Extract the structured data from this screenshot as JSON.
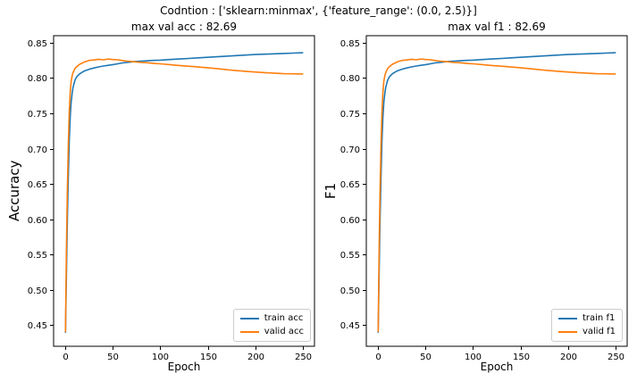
{
  "figure": {
    "suptitle": "Codntion : ['sklearn:minmax', {'feature_range': (0.0, 2.5)}]"
  },
  "colors": {
    "train_line": "#1f77b4",
    "valid_line": "#ff7f0e",
    "spine": "#000000",
    "legend_border": "#cccccc",
    "background": "#ffffff"
  },
  "chart_data": [
    {
      "type": "line",
      "title": "max val acc : 82.69",
      "xlabel": "Epoch",
      "ylabel": "Accuracy",
      "legend_position": "lower right",
      "grid": false,
      "axis": {
        "xlim": [
          -12.5,
          262.5
        ],
        "ylim": [
          0.42,
          0.86
        ],
        "xticks": [
          0,
          50,
          100,
          150,
          200,
          250
        ],
        "xtick_labels": [
          "0",
          "50",
          "100",
          "150",
          "200",
          "250"
        ],
        "yticks": [
          0.45,
          0.5,
          0.55,
          0.6,
          0.65,
          0.7,
          0.75,
          0.8,
          0.85
        ],
        "ytick_labels": [
          "0.45",
          "0.50",
          "0.55",
          "0.60",
          "0.65",
          "0.70",
          "0.75",
          "0.80",
          "0.85"
        ]
      },
      "x": [
        0,
        1,
        2,
        3,
        4,
        5,
        6,
        7,
        8,
        10,
        12,
        15,
        18,
        20,
        25,
        30,
        35,
        40,
        45,
        50,
        55,
        60,
        65,
        70,
        75,
        80,
        85,
        90,
        95,
        100,
        110,
        120,
        130,
        140,
        150,
        160,
        170,
        180,
        190,
        200,
        210,
        220,
        230,
        240,
        250
      ],
      "series": [
        {
          "name": "train acc",
          "color": "#1f77b4",
          "values": [
            0.44,
            0.52,
            0.6,
            0.662,
            0.71,
            0.745,
            0.765,
            0.778,
            0.787,
            0.797,
            0.802,
            0.806,
            0.8085,
            0.81,
            0.8125,
            0.8142,
            0.8158,
            0.817,
            0.818,
            0.819,
            0.8202,
            0.8214,
            0.8222,
            0.823,
            0.8236,
            0.824,
            0.8244,
            0.8248,
            0.8251,
            0.8254,
            0.8262,
            0.827,
            0.8278,
            0.8286,
            0.8294,
            0.8302,
            0.831,
            0.8318,
            0.8326,
            0.8333,
            0.8338,
            0.8343,
            0.8348,
            0.8353,
            0.8358
          ]
        },
        {
          "name": "valid acc",
          "color": "#ff7f0e",
          "values": [
            0.441,
            0.552,
            0.641,
            0.706,
            0.751,
            0.78,
            0.795,
            0.803,
            0.808,
            0.8135,
            0.8163,
            0.8196,
            0.8214,
            0.8228,
            0.825,
            0.8256,
            0.8266,
            0.8258,
            0.8269,
            0.8262,
            0.8258,
            0.8248,
            0.824,
            0.8234,
            0.8228,
            0.8222,
            0.8218,
            0.8212,
            0.8206,
            0.8202,
            0.819,
            0.8178,
            0.8168,
            0.8156,
            0.8146,
            0.8133,
            0.8118,
            0.8105,
            0.8095,
            0.8086,
            0.8076,
            0.807,
            0.8061,
            0.806,
            0.8057
          ]
        }
      ]
    },
    {
      "type": "line",
      "title": "max val f1 : 82.69",
      "xlabel": "Epoch",
      "ylabel": "F1",
      "legend_position": "lower right",
      "grid": false,
      "axis": {
        "xlim": [
          -12.5,
          262.5
        ],
        "ylim": [
          0.42,
          0.86
        ],
        "xticks": [
          0,
          50,
          100,
          150,
          200,
          250
        ],
        "xtick_labels": [
          "0",
          "50",
          "100",
          "150",
          "200",
          "250"
        ],
        "yticks": [
          0.45,
          0.5,
          0.55,
          0.6,
          0.65,
          0.7,
          0.75,
          0.8,
          0.85
        ],
        "ytick_labels": [
          "0.45",
          "0.50",
          "0.55",
          "0.60",
          "0.65",
          "0.70",
          "0.75",
          "0.80",
          "0.85"
        ]
      },
      "x": [
        0,
        1,
        2,
        3,
        4,
        5,
        6,
        7,
        8,
        10,
        12,
        15,
        18,
        20,
        25,
        30,
        35,
        40,
        45,
        50,
        55,
        60,
        65,
        70,
        75,
        80,
        85,
        90,
        95,
        100,
        110,
        120,
        130,
        140,
        150,
        160,
        170,
        180,
        190,
        200,
        210,
        220,
        230,
        240,
        250
      ],
      "series": [
        {
          "name": "train f1",
          "color": "#1f77b4",
          "values": [
            0.44,
            0.52,
            0.6,
            0.662,
            0.71,
            0.745,
            0.765,
            0.778,
            0.787,
            0.797,
            0.802,
            0.806,
            0.8085,
            0.81,
            0.8125,
            0.8142,
            0.8158,
            0.817,
            0.818,
            0.819,
            0.8202,
            0.8214,
            0.8222,
            0.823,
            0.8236,
            0.824,
            0.8244,
            0.8248,
            0.8251,
            0.8254,
            0.8262,
            0.827,
            0.8278,
            0.8286,
            0.8294,
            0.8302,
            0.831,
            0.8318,
            0.8326,
            0.8333,
            0.8338,
            0.8343,
            0.8348,
            0.8353,
            0.8358
          ]
        },
        {
          "name": "valid f1",
          "color": "#ff7f0e",
          "values": [
            0.441,
            0.552,
            0.641,
            0.706,
            0.751,
            0.78,
            0.795,
            0.803,
            0.808,
            0.8135,
            0.8163,
            0.8196,
            0.8214,
            0.8228,
            0.825,
            0.8256,
            0.8266,
            0.8258,
            0.8269,
            0.8262,
            0.8258,
            0.8248,
            0.824,
            0.8234,
            0.8228,
            0.8222,
            0.8218,
            0.8212,
            0.8206,
            0.8202,
            0.819,
            0.8178,
            0.8168,
            0.8156,
            0.8146,
            0.8133,
            0.8118,
            0.8105,
            0.8095,
            0.8086,
            0.8076,
            0.807,
            0.8061,
            0.806,
            0.8057
          ]
        }
      ]
    }
  ]
}
